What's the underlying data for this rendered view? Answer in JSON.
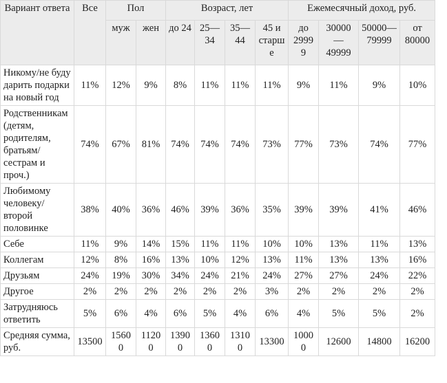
{
  "table": {
    "header": {
      "option": "Вариант ответа",
      "all": "Все",
      "groups": [
        "Пол",
        "Возраст, лет",
        "Ежемесячный доход, руб."
      ],
      "subcolumns": [
        "муж",
        "жен",
        "до 24",
        "25—34",
        "35—44",
        "45 и старше",
        "до 29999",
        "30000—49999",
        "50000—79999",
        "от 80000"
      ]
    },
    "rows": [
      [
        "Никому/не буду дарить подарки на новый год",
        "11%",
        "12%",
        "9%",
        "8%",
        "11%",
        "11%",
        "11%",
        "9%",
        "11%",
        "9%",
        "10%"
      ],
      [
        "Родственникам (детям, родителям, братьям/сестрам и проч.)",
        "74%",
        "67%",
        "81%",
        "74%",
        "74%",
        "74%",
        "73%",
        "77%",
        "73%",
        "74%",
        "77%"
      ],
      [
        "Любимому человеку/второй половинке",
        "38%",
        "40%",
        "36%",
        "46%",
        "39%",
        "36%",
        "35%",
        "39%",
        "39%",
        "41%",
        "46%"
      ],
      [
        "Себе",
        "11%",
        "9%",
        "14%",
        "15%",
        "11%",
        "11%",
        "10%",
        "10%",
        "13%",
        "11%",
        "13%"
      ],
      [
        "Коллегам",
        "12%",
        "8%",
        "16%",
        "13%",
        "10%",
        "12%",
        "13%",
        "11%",
        "13%",
        "13%",
        "16%"
      ],
      [
        "Друзьям",
        "24%",
        "19%",
        "30%",
        "34%",
        "24%",
        "21%",
        "24%",
        "27%",
        "27%",
        "24%",
        "22%"
      ],
      [
        "Другое",
        "2%",
        "2%",
        "2%",
        "2%",
        "2%",
        "2%",
        "3%",
        "2%",
        "2%",
        "2%",
        "2%"
      ],
      [
        "Затрудняюсь ответить",
        "5%",
        "6%",
        "4%",
        "6%",
        "5%",
        "4%",
        "6%",
        "4%",
        "5%",
        "5%",
        "2%"
      ],
      [
        "Средняя сумма, руб.",
        "13500",
        "15600",
        "11200",
        "13900",
        "13600",
        "13100",
        "13300",
        "10000",
        "12600",
        "14800",
        "16200"
      ]
    ]
  }
}
